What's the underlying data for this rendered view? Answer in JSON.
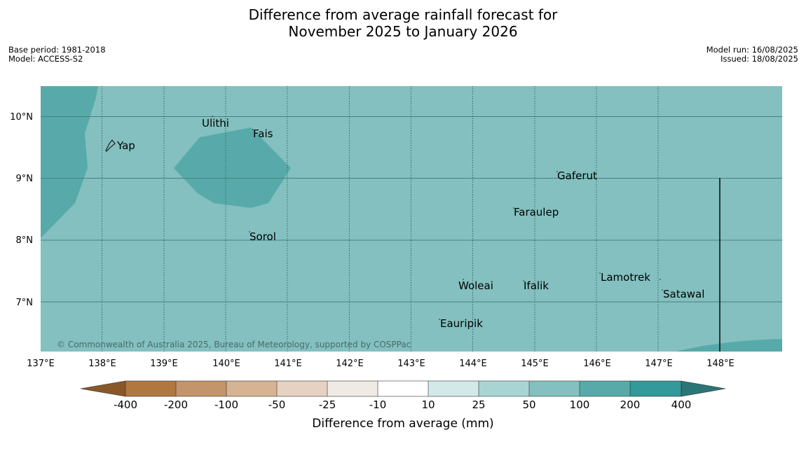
{
  "header": {
    "title_line1": "Difference from average rainfall forecast for",
    "title_line2": "November 2025 to January 2026",
    "base_period": "Base period: 1981-2018",
    "model": "Model: ACCESS-S2",
    "model_run": "Model run: 16/08/2025",
    "issued": "Issued: 18/08/2025"
  },
  "map": {
    "lon_labels": [
      "137°E",
      "138°E",
      "139°E",
      "140°E",
      "141°E",
      "142°E",
      "143°E",
      "144°E",
      "145°E",
      "146°E",
      "147°E",
      "148°E"
    ],
    "lat_labels": [
      "10°N",
      "9°N",
      "8°N",
      "7°N"
    ],
    "places": [
      "Ulithi",
      "Fais",
      "Yap",
      "Gaferut",
      "Faraulep",
      "Sorol",
      "Lamotrek",
      "Woleai",
      "Ifalik",
      "Satawal",
      "Eauripik"
    ],
    "copyright": "© Commonwealth of Australia 2025, Bureau of Meteorology, supported by COSPPac"
  },
  "colorbar": {
    "labels": [
      "-400",
      "-200",
      "-100",
      "-50",
      "-25",
      "-10",
      "10",
      "25",
      "50",
      "100",
      "200",
      "400"
    ],
    "title": "Difference from average (mm)",
    "colors": {
      "lt_-400": "#8a5828",
      "-400_-200": "#b07840",
      "-200_-100": "#c4956a",
      "-100_-50": "#d6b392",
      "-50_-25": "#e6d2c2",
      "-25_-10": "#efebe4",
      "-10_10": "#ffffff",
      "10_25": "#d3e8e8",
      "25_50": "#a9d4d4",
      "50_100": "#83c0bf",
      "100_200": "#57aaa9",
      "200_400": "#33999a",
      "gt_400": "#2a7676"
    }
  }
}
